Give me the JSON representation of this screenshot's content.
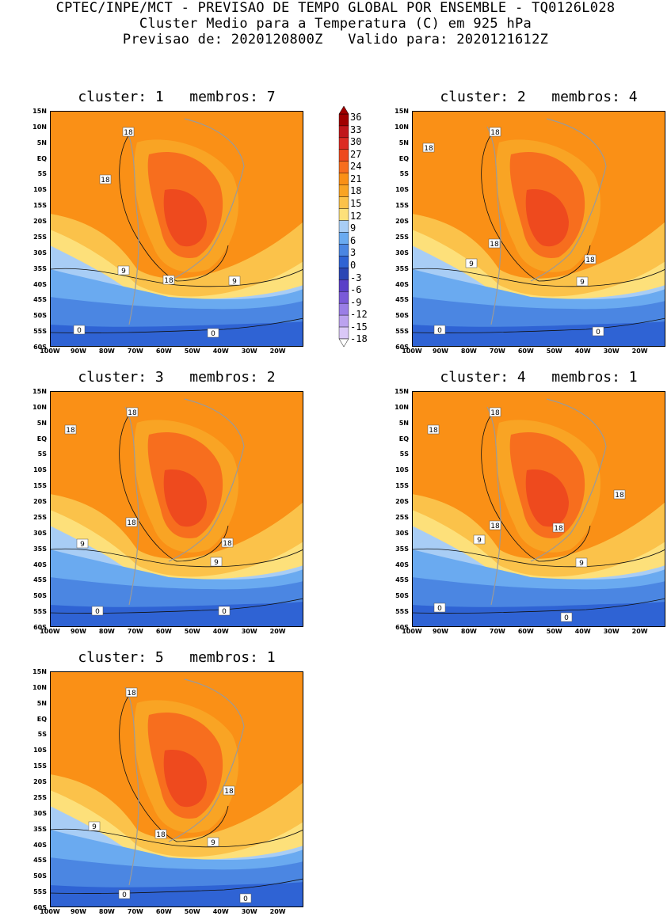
{
  "header": {
    "line1": "CPTEC/INPE/MCT - PREVISAO DE TEMPO GLOBAL POR ENSEMBLE - TQ0126L028",
    "line2": "Cluster Medio para a Temperatura (C) em 925 hPa",
    "line3": "Previsao de: 2020120800Z   Valido para: 2020121612Z"
  },
  "lat_labels": [
    "15N",
    "10N",
    "5N",
    "EQ",
    "5S",
    "10S",
    "15S",
    "20S",
    "25S",
    "30S",
    "35S",
    "40S",
    "45S",
    "50S",
    "55S",
    "60S"
  ],
  "lon_labels": [
    "100W",
    "90W",
    "80W",
    "70W",
    "60W",
    "50W",
    "40W",
    "30W",
    "20W"
  ],
  "colorbar": {
    "labels": [
      "36",
      "33",
      "30",
      "27",
      "24",
      "21",
      "18",
      "15",
      "12",
      "9",
      "6",
      "3",
      "0",
      "-3",
      "-6",
      "-9",
      "-12",
      "-15",
      "-18"
    ],
    "colors": [
      "#a00000",
      "#c0161a",
      "#dc2b22",
      "#ee4a1e",
      "#f76e1e",
      "#fa9016",
      "#f9a424",
      "#fbc24a",
      "#fde07a",
      "#a8cdf5",
      "#6aaaf0",
      "#4b86e2",
      "#2f63d4",
      "#2a46b4",
      "#5a3fc8",
      "#7a5ad8",
      "#9a7ee6",
      "#bba2ef",
      "#dac8f7"
    ]
  },
  "panels": [
    {
      "title": "cluster: 1   membros: 7",
      "contours": [
        {
          "label": "18"
        },
        {
          "label": "18"
        },
        {
          "label": "18"
        },
        {
          "label": "9"
        },
        {
          "label": "9"
        },
        {
          "label": "0"
        },
        {
          "label": "0"
        }
      ]
    },
    {
      "title": "cluster: 2   membros: 4",
      "contours": [
        {
          "label": "18"
        },
        {
          "label": "18"
        },
        {
          "label": "18"
        },
        {
          "label": "18"
        },
        {
          "label": "9"
        },
        {
          "label": "9"
        },
        {
          "label": "0"
        },
        {
          "label": "0"
        }
      ]
    },
    {
      "title": "cluster: 3   membros: 2",
      "contours": [
        {
          "label": "18"
        },
        {
          "label": "18"
        },
        {
          "label": "18"
        },
        {
          "label": "18"
        },
        {
          "label": "9"
        },
        {
          "label": "9"
        },
        {
          "label": "0"
        },
        {
          "label": "0"
        }
      ]
    },
    {
      "title": "cluster: 4   membros: 1",
      "contours": [
        {
          "label": "18"
        },
        {
          "label": "18"
        },
        {
          "label": "18"
        },
        {
          "label": "18"
        },
        {
          "label": "18"
        },
        {
          "label": "9"
        },
        {
          "label": "9"
        },
        {
          "label": "0"
        },
        {
          "label": "0"
        }
      ]
    },
    {
      "title": "cluster: 5   membros: 1",
      "contours": [
        {
          "label": "18"
        },
        {
          "label": "18"
        },
        {
          "label": "18"
        },
        {
          "label": "9"
        },
        {
          "label": "9"
        },
        {
          "label": "0"
        },
        {
          "label": "0"
        }
      ]
    }
  ]
}
